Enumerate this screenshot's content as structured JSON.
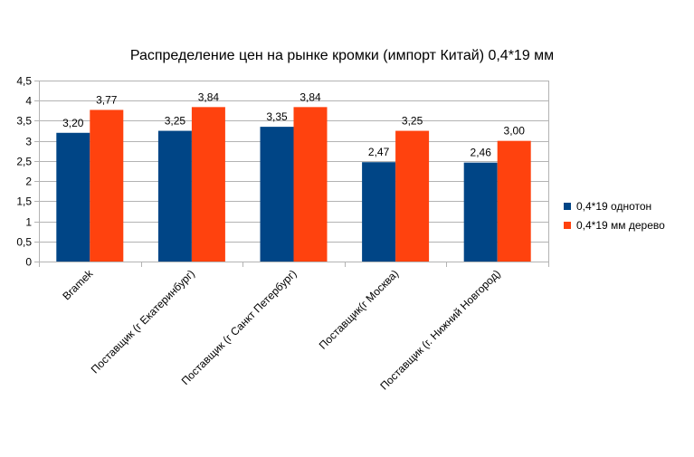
{
  "chart_data": {
    "type": "bar",
    "title": "Распределение цен на рынке кромки (импорт Китай) 0,4*19 мм",
    "categories": [
      "Bramek",
      "Поставщик (г Екатеринбург)",
      "Поставщик (г Санкт Петербург)",
      "Поставщик(г Москва)",
      "Поставщик (г. Нижний Новгород)"
    ],
    "series": [
      {
        "name": "0,4*19 однотон",
        "color": "#004586",
        "values": [
          3.2,
          3.25,
          3.35,
          2.47,
          2.46
        ],
        "labels": [
          "3,20",
          "3,25",
          "3,35",
          "2,47",
          "2,46"
        ]
      },
      {
        "name": "0,4*19 мм дерево",
        "color": "#ff420e",
        "values": [
          3.77,
          3.84,
          3.84,
          3.25,
          3.0
        ],
        "labels": [
          "3,77",
          "3,84",
          "3,84",
          "3,25",
          "3,00"
        ]
      }
    ],
    "ylim": [
      0,
      4.5
    ],
    "ytick_labels": [
      "0",
      "0,5",
      "1",
      "1,5",
      "2",
      "2,5",
      "3",
      "3,5",
      "4",
      "4,5"
    ],
    "grid": true,
    "legend_position": "right"
  }
}
